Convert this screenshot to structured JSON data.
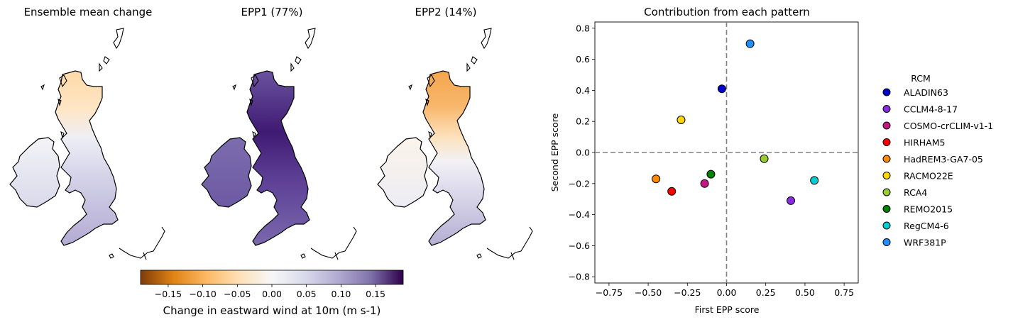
{
  "chart_data": [
    {
      "type": "heatmap",
      "title": "Ensemble mean change"
    },
    {
      "type": "heatmap",
      "title": "EPP1 (77%)"
    },
    {
      "type": "heatmap",
      "title": "EPP2 (14%)"
    },
    {
      "type": "colorbar",
      "label": "Change in eastward wind at 10m (m s-1)",
      "range": [
        -0.19,
        0.19
      ],
      "ticks": [
        -0.15,
        -0.1,
        -0.05,
        0.0,
        0.05,
        0.1,
        0.15
      ],
      "tick_labels": [
        "−0.15",
        "−0.10",
        "−0.05",
        "0.00",
        "0.05",
        "0.10",
        "0.15"
      ],
      "colormap_stops": [
        "#7f3b08",
        "#e08214",
        "#fdb863",
        "#fee0b6",
        "#f7f7f7",
        "#d8daeb",
        "#b2abd2",
        "#8073ac",
        "#2d004b"
      ]
    },
    {
      "type": "scatter",
      "title": "Contribution from each pattern",
      "xlabel": "First EPP score",
      "ylabel": "Second EPP score",
      "xlim": [
        -0.84,
        0.84
      ],
      "ylim": [
        -0.84,
        0.84
      ],
      "xticks": [
        -0.75,
        -0.5,
        -0.25,
        0.0,
        0.25,
        0.5,
        0.75
      ],
      "xtick_labels": [
        "−0.75",
        "−0.50",
        "−0.25",
        "0.00",
        "0.25",
        "0.50",
        "0.75"
      ],
      "yticks": [
        -0.8,
        -0.6,
        -0.4,
        -0.2,
        0.0,
        0.2,
        0.4,
        0.6,
        0.8
      ],
      "ytick_labels": [
        "−0.8",
        "−0.6",
        "−0.4",
        "−0.2",
        "0.0",
        "0.2",
        "0.4",
        "0.6",
        "0.8"
      ],
      "legend_title": "RCM",
      "legend_position": "right-outside",
      "reference_lines": {
        "x": 0,
        "y": 0,
        "style": "dashed",
        "color": "#808080"
      },
      "series": [
        {
          "name": "ALADIN63",
          "x": -0.03,
          "y": 0.41,
          "color": "#0000cd"
        },
        {
          "name": "CCLM4-8-17",
          "x": 0.41,
          "y": -0.31,
          "color": "#8a2be2"
        },
        {
          "name": "COSMO-crCLIM-v1-1",
          "x": -0.14,
          "y": -0.2,
          "color": "#c71585"
        },
        {
          "name": "HIRHAM5",
          "x": -0.35,
          "y": -0.25,
          "color": "#ff0000"
        },
        {
          "name": "HadREM3-GA7-05",
          "x": -0.45,
          "y": -0.17,
          "color": "#ff8c00"
        },
        {
          "name": "RACMO22E",
          "x": -0.29,
          "y": 0.21,
          "color": "#ffd700"
        },
        {
          "name": "RCA4",
          "x": 0.24,
          "y": -0.04,
          "color": "#9acd32"
        },
        {
          "name": "REMO2015",
          "x": -0.1,
          "y": -0.14,
          "color": "#008000"
        },
        {
          "name": "RegCM4-6",
          "x": 0.56,
          "y": -0.18,
          "color": "#00ced1"
        },
        {
          "name": "WRF381P",
          "x": 0.15,
          "y": 0.7,
          "color": "#1e90ff"
        }
      ]
    }
  ]
}
